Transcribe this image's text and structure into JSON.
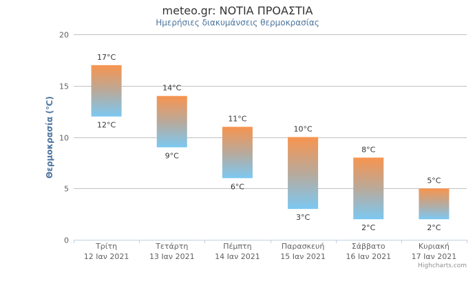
{
  "chart_data": {
    "type": "columnrange",
    "title": "meteo.gr: ΝΟΤΙΑ ΠΡΟΑΣΤΙΑ",
    "subtitle": "Ημερήσιες διακυμάνσεις θερμοκρασίας",
    "ylabel": "Θερμοκρασία (℃)",
    "xlabel": "",
    "ylim": [
      0,
      20
    ],
    "yticks": [
      "0",
      "5",
      "10",
      "15",
      "20"
    ],
    "ytick_values": [
      0,
      5,
      10,
      15,
      20
    ],
    "grid": true,
    "categories": [
      [
        "Τρίτη",
        "12 Ιαν 2021"
      ],
      [
        "Τετάρτη",
        "13 Ιαν 2021"
      ],
      [
        "Πέμπτη",
        "14 Ιαν 2021"
      ],
      [
        "Παρασκευή",
        "15 Ιαν 2021"
      ],
      [
        "Σάββατο",
        "16 Ιαν 2021"
      ],
      [
        "Κυριακή",
        "17 Ιαν 2021"
      ]
    ],
    "series": [
      {
        "name": "Θερμοκρασία",
        "low": [
          12,
          9,
          6,
          3,
          2,
          2
        ],
        "high": [
          17,
          14,
          11,
          10,
          8,
          5
        ],
        "low_labels": [
          "12°C",
          "9°C",
          "6°C",
          "3°C",
          "2°C",
          "2°C"
        ],
        "high_labels": [
          "17°C",
          "14°C",
          "11°C",
          "10°C",
          "8°C",
          "5°C"
        ]
      }
    ],
    "colors": {
      "top": "#f7944f",
      "bottom": "#7cc8f2",
      "grid": "#c0c0c0",
      "axis": "#c0d0e0"
    }
  },
  "credits": "Highcharts.com"
}
